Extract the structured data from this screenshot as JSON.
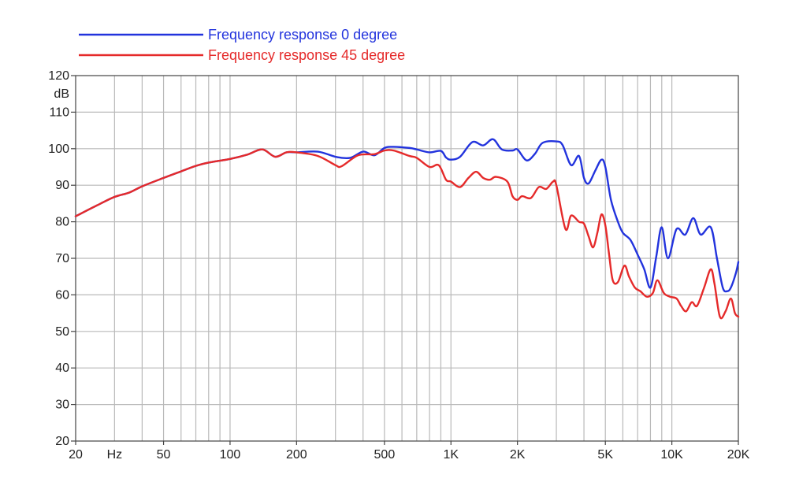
{
  "chart_data": {
    "type": "line",
    "xscale": "log",
    "xlim": [
      20,
      20000
    ],
    "ylim": [
      20,
      120
    ],
    "grid": true,
    "legend_position": "top-left",
    "y_unit_label": "dB",
    "x_unit_label": "Hz",
    "y_ticks": [
      20,
      30,
      40,
      50,
      60,
      70,
      80,
      90,
      100,
      110,
      120
    ],
    "y_tick_labels": [
      "20",
      "30",
      "40",
      "50",
      "60",
      "70",
      "80",
      "90",
      "100",
      "110",
      "120"
    ],
    "x_tick_labels": [
      {
        "value": 20,
        "label": "20"
      },
      {
        "value": 50,
        "label": "50"
      },
      {
        "value": 100,
        "label": "100"
      },
      {
        "value": 200,
        "label": "200"
      },
      {
        "value": 500,
        "label": "500"
      },
      {
        "value": 1000,
        "label": "1K"
      },
      {
        "value": 2000,
        "label": "2K"
      },
      {
        "value": 5000,
        "label": "5K"
      },
      {
        "value": 10000,
        "label": "10K"
      },
      {
        "value": 20000,
        "label": "20K"
      }
    ],
    "series": [
      {
        "name": "Frequency response 0 degree",
        "color": "#2233dd",
        "points": [
          [
            20,
            81.5
          ],
          [
            25,
            84.5
          ],
          [
            30,
            86.8
          ],
          [
            35,
            88
          ],
          [
            40,
            89.7
          ],
          [
            50,
            92
          ],
          [
            60,
            93.8
          ],
          [
            70,
            95.3
          ],
          [
            80,
            96.2
          ],
          [
            100,
            97.2
          ],
          [
            120,
            98.4
          ],
          [
            140,
            99.8
          ],
          [
            160,
            97.8
          ],
          [
            180,
            99.0
          ],
          [
            200,
            99.0
          ],
          [
            250,
            99.2
          ],
          [
            300,
            97.8
          ],
          [
            350,
            97.5
          ],
          [
            400,
            99.2
          ],
          [
            450,
            98.2
          ],
          [
            500,
            100.2
          ],
          [
            550,
            100.5
          ],
          [
            650,
            100.2
          ],
          [
            700,
            99.8
          ],
          [
            800,
            99.0
          ],
          [
            900,
            99.4
          ],
          [
            950,
            97.6
          ],
          [
            1000,
            97.0
          ],
          [
            1100,
            97.8
          ],
          [
            1250,
            101.8
          ],
          [
            1400,
            100.9
          ],
          [
            1550,
            102.6
          ],
          [
            1700,
            99.8
          ],
          [
            1900,
            99.5
          ],
          [
            2000,
            99.8
          ],
          [
            2200,
            96.8
          ],
          [
            2400,
            98.6
          ],
          [
            2600,
            101.6
          ],
          [
            3000,
            102.0
          ],
          [
            3200,
            101.0
          ],
          [
            3500,
            95.5
          ],
          [
            3800,
            98.0
          ],
          [
            4000,
            92.0
          ],
          [
            4200,
            90.5
          ],
          [
            4500,
            94.0
          ],
          [
            4800,
            97.0
          ],
          [
            5000,
            95.0
          ],
          [
            5300,
            86.0
          ],
          [
            5700,
            80.0
          ],
          [
            6000,
            77.0
          ],
          [
            6500,
            75.0
          ],
          [
            7000,
            71.0
          ],
          [
            7500,
            67.0
          ],
          [
            8000,
            62.0
          ],
          [
            8500,
            70.5
          ],
          [
            9000,
            78.5
          ],
          [
            9600,
            70.0
          ],
          [
            10500,
            78.0
          ],
          [
            11500,
            76.5
          ],
          [
            12500,
            81.0
          ],
          [
            13500,
            76.5
          ],
          [
            15000,
            78.5
          ],
          [
            16000,
            70.0
          ],
          [
            17000,
            62.0
          ],
          [
            17800,
            61.0
          ],
          [
            18500,
            62.0
          ],
          [
            19500,
            66.0
          ],
          [
            20000,
            69.0
          ]
        ]
      },
      {
        "name": "Frequency response 45 degree",
        "color": "#e52a2a",
        "points": [
          [
            20,
            81.5
          ],
          [
            25,
            84.5
          ],
          [
            30,
            86.8
          ],
          [
            35,
            88
          ],
          [
            40,
            89.7
          ],
          [
            50,
            92
          ],
          [
            60,
            93.8
          ],
          [
            70,
            95.3
          ],
          [
            80,
            96.2
          ],
          [
            100,
            97.2
          ],
          [
            120,
            98.4
          ],
          [
            140,
            99.8
          ],
          [
            160,
            97.8
          ],
          [
            180,
            99.0
          ],
          [
            200,
            99.0
          ],
          [
            250,
            98.0
          ],
          [
            300,
            95.5
          ],
          [
            320,
            95.2
          ],
          [
            380,
            98.2
          ],
          [
            450,
            98.5
          ],
          [
            500,
            99.5
          ],
          [
            550,
            99.5
          ],
          [
            650,
            98.0
          ],
          [
            700,
            97.5
          ],
          [
            800,
            95.0
          ],
          [
            880,
            95.5
          ],
          [
            950,
            91.5
          ],
          [
            1000,
            91.0
          ],
          [
            1100,
            89.5
          ],
          [
            1200,
            92.0
          ],
          [
            1300,
            93.7
          ],
          [
            1400,
            92.0
          ],
          [
            1500,
            91.5
          ],
          [
            1600,
            92.3
          ],
          [
            1800,
            91.0
          ],
          [
            1900,
            87.0
          ],
          [
            2000,
            86.0
          ],
          [
            2100,
            87.0
          ],
          [
            2300,
            86.5
          ],
          [
            2500,
            89.5
          ],
          [
            2700,
            89.0
          ],
          [
            2900,
            91.0
          ],
          [
            3000,
            90.0
          ],
          [
            3300,
            78.0
          ],
          [
            3500,
            81.7
          ],
          [
            3800,
            80.0
          ],
          [
            4000,
            79.5
          ],
          [
            4200,
            76.0
          ],
          [
            4400,
            73.0
          ],
          [
            4600,
            77.0
          ],
          [
            4800,
            82.0
          ],
          [
            5000,
            79.0
          ],
          [
            5200,
            71.0
          ],
          [
            5400,
            64.0
          ],
          [
            5700,
            63.5
          ],
          [
            6100,
            68.0
          ],
          [
            6400,
            65.0
          ],
          [
            6800,
            62.0
          ],
          [
            7200,
            61.0
          ],
          [
            7700,
            59.5
          ],
          [
            8200,
            60.5
          ],
          [
            8600,
            64.0
          ],
          [
            9200,
            60.5
          ],
          [
            9800,
            59.5
          ],
          [
            10500,
            59.0
          ],
          [
            11000,
            57.0
          ],
          [
            11600,
            55.5
          ],
          [
            12300,
            58.0
          ],
          [
            13000,
            57.0
          ],
          [
            14000,
            62.0
          ],
          [
            15000,
            67.0
          ],
          [
            15600,
            63.0
          ],
          [
            16500,
            54.0
          ],
          [
            17500,
            55.5
          ],
          [
            18500,
            59.0
          ],
          [
            19300,
            55.0
          ],
          [
            20000,
            54.0
          ]
        ]
      }
    ]
  }
}
